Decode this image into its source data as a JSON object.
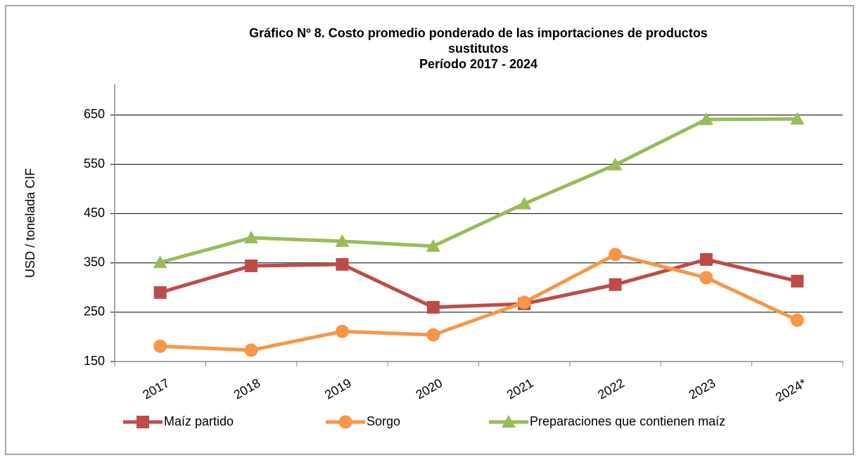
{
  "chart_data": {
    "type": "line",
    "title": [
      "Gráfico Nº 8. Costo promedio ponderado de las importaciones de productos",
      "sustitutos"
    ],
    "subtitle": "Período 2017 - 2024",
    "y_label": "USD / tonelada CIF",
    "categories": [
      "2017",
      "2018",
      "2019",
      "2020",
      "2021",
      "2022",
      "2023",
      "2024*"
    ],
    "series": [
      {
        "name": "Maíz partido",
        "color": "#be4b48",
        "marker": "square",
        "values": [
          290,
          344,
          347,
          260,
          267,
          306,
          357,
          313
        ]
      },
      {
        "name": "Sorgo",
        "color": "#f79646",
        "marker": "circle",
        "values": [
          181,
          173,
          211,
          204,
          270,
          367,
          320,
          234
        ]
      },
      {
        "name": "Preparaciones que contienen maíz",
        "color": "#9bbb59",
        "marker": "triangle",
        "values": [
          351,
          401,
          394,
          384,
          470,
          549,
          641,
          642
        ]
      }
    ],
    "ylim": [
      150,
      712
    ],
    "yticks": [
      150,
      250,
      350,
      450,
      550,
      650
    ],
    "grid": true,
    "legend": "bottom"
  }
}
